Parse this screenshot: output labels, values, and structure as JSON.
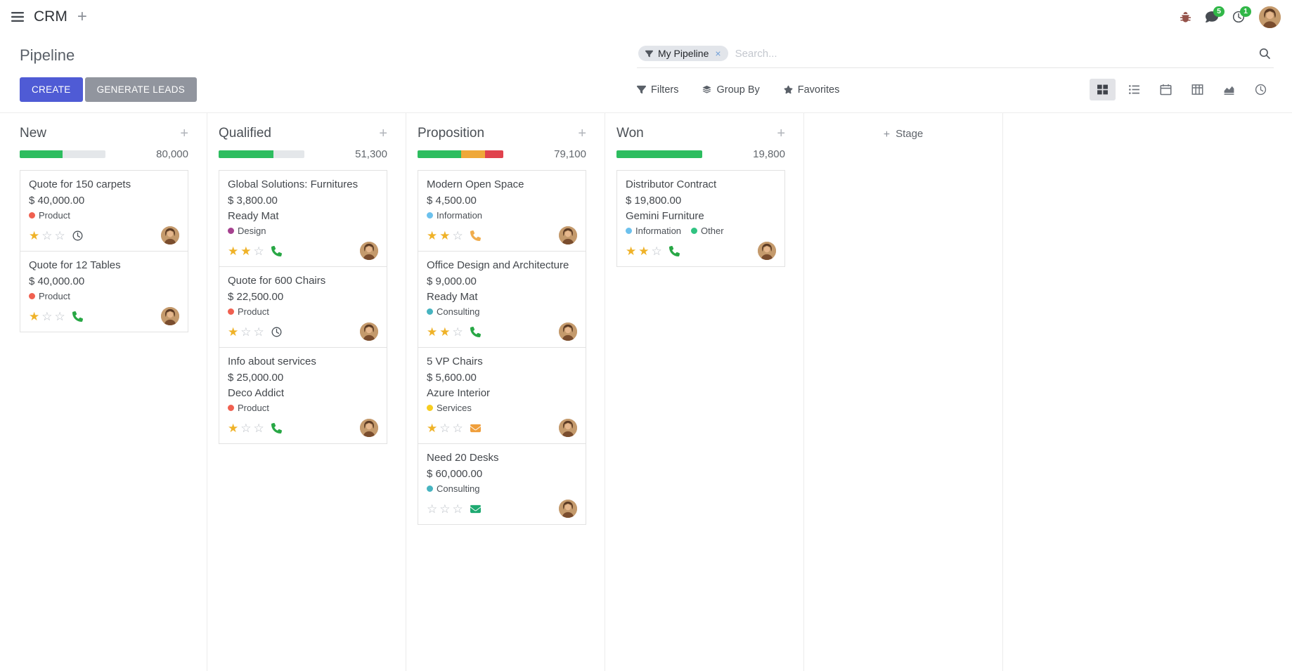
{
  "colors": {
    "accent": "#4f5bd5",
    "secondary": "#91959e",
    "success": "#2dbd5f",
    "warning": "#efa839",
    "danger": "#e0424d",
    "bar_bg": "#e4e7ea",
    "star": "#efb228",
    "badge": "#31b748"
  },
  "glyphs": {
    "plus": "+",
    "facet_remove": "×",
    "star_filled": "★",
    "star_empty": "☆"
  },
  "navbar": {
    "app_name": "CRM",
    "messages_badge": "5",
    "activities_badge": "1"
  },
  "control_panel": {
    "title": "Pipeline",
    "create_label": "CREATE",
    "generate_label": "GENERATE LEADS",
    "search": {
      "facet": "My Pipeline",
      "placeholder": "Search..."
    },
    "filter_menus": [
      {
        "label": "Filters",
        "icon": "filter-icon"
      },
      {
        "label": "Group By",
        "icon": "group-by-icon"
      },
      {
        "label": "Favorites",
        "icon": "favorites-icon"
      }
    ],
    "view_switcher": [
      {
        "name": "kanban",
        "icon": "kanban-view-icon",
        "active": true
      },
      {
        "name": "list",
        "icon": "list-view-icon",
        "active": false
      },
      {
        "name": "calendar",
        "icon": "calendar-view-icon",
        "active": false
      },
      {
        "name": "pivot",
        "icon": "pivot-view-icon",
        "active": false
      },
      {
        "name": "graph",
        "icon": "graph-view-icon",
        "active": false
      },
      {
        "name": "activity",
        "icon": "activity-view-icon",
        "active": false
      }
    ]
  },
  "board": {
    "add_stage_label": "Stage",
    "columns": [
      {
        "name": "New",
        "amount": "80,000",
        "progress": [
          {
            "color": "#2dbd5f",
            "pct": 50
          }
        ],
        "cards": [
          {
            "title": "Quote for 150 carpets",
            "amount": "$ 40,000.00",
            "tags": [
              {
                "label": "Product",
                "color": "#f06050"
              }
            ],
            "stars": 1,
            "activity": {
              "icon": "clock",
              "color": "#495057"
            }
          },
          {
            "title": "Quote for 12 Tables",
            "amount": "$ 40,000.00",
            "tags": [
              {
                "label": "Product",
                "color": "#f06050"
              }
            ],
            "stars": 1,
            "activity": {
              "icon": "phone",
              "color": "#28a745"
            }
          }
        ]
      },
      {
        "name": "Qualified",
        "amount": "51,300",
        "progress": [
          {
            "color": "#2dbd5f",
            "pct": 64
          }
        ],
        "cards": [
          {
            "title": "Global Solutions: Furnitures",
            "amount": "$ 3,800.00",
            "partner": "Ready Mat",
            "tags": [
              {
                "label": "Design",
                "color": "#a5418f"
              }
            ],
            "stars": 2,
            "activity": {
              "icon": "phone",
              "color": "#28a745"
            }
          },
          {
            "title": "Quote for 600 Chairs",
            "amount": "$ 22,500.00",
            "tags": [
              {
                "label": "Product",
                "color": "#f06050"
              }
            ],
            "stars": 1,
            "activity": {
              "icon": "clock",
              "color": "#495057"
            }
          },
          {
            "title": "Info about services",
            "amount": "$ 25,000.00",
            "partner": "Deco Addict",
            "tags": [
              {
                "label": "Product",
                "color": "#f06050"
              }
            ],
            "stars": 1,
            "activity": {
              "icon": "phone",
              "color": "#28a745"
            }
          }
        ]
      },
      {
        "name": "Proposition",
        "amount": "79,100",
        "progress": [
          {
            "color": "#2dbd5f",
            "pct": 51
          },
          {
            "color": "#efa839",
            "pct": 28
          },
          {
            "color": "#e0424d",
            "pct": 21
          }
        ],
        "cards": [
          {
            "title": "Modern Open Space",
            "amount": "$ 4,500.00",
            "tags": [
              {
                "label": "Information",
                "color": "#6cc1ed"
              }
            ],
            "stars": 2,
            "activity": {
              "icon": "phone",
              "color": "#f0ad4e"
            }
          },
          {
            "title": "Office Design and Architecture",
            "amount": "$ 9,000.00",
            "partner": "Ready Mat",
            "tags": [
              {
                "label": "Consulting",
                "color": "#47b4c0"
              }
            ],
            "stars": 2,
            "activity": {
              "icon": "phone",
              "color": "#28a745"
            }
          },
          {
            "title": "5 VP Chairs",
            "amount": "$ 5,600.00",
            "partner": "Azure Interior",
            "tags": [
              {
                "label": "Services",
                "color": "#f7cd1f"
              }
            ],
            "stars": 1,
            "activity": {
              "icon": "envelope",
              "color": "#ef9f3c"
            }
          },
          {
            "title": "Need 20 Desks",
            "amount": "$ 60,000.00",
            "tags": [
              {
                "label": "Consulting",
                "color": "#47b4c0"
              }
            ],
            "stars": 0,
            "activity": {
              "icon": "envelope",
              "color": "#1faa72"
            }
          }
        ]
      },
      {
        "name": "Won",
        "amount": "19,800",
        "progress": [
          {
            "color": "#2dbd5f",
            "pct": 100
          }
        ],
        "cards": [
          {
            "title": "Distributor Contract",
            "amount": "$ 19,800.00",
            "partner": "Gemini Furniture",
            "tags": [
              {
                "label": "Information",
                "color": "#6cc1ed"
              },
              {
                "label": "Other",
                "color": "#30c381"
              }
            ],
            "stars": 2,
            "activity": {
              "icon": "phone",
              "color": "#28a745"
            }
          }
        ]
      }
    ]
  }
}
